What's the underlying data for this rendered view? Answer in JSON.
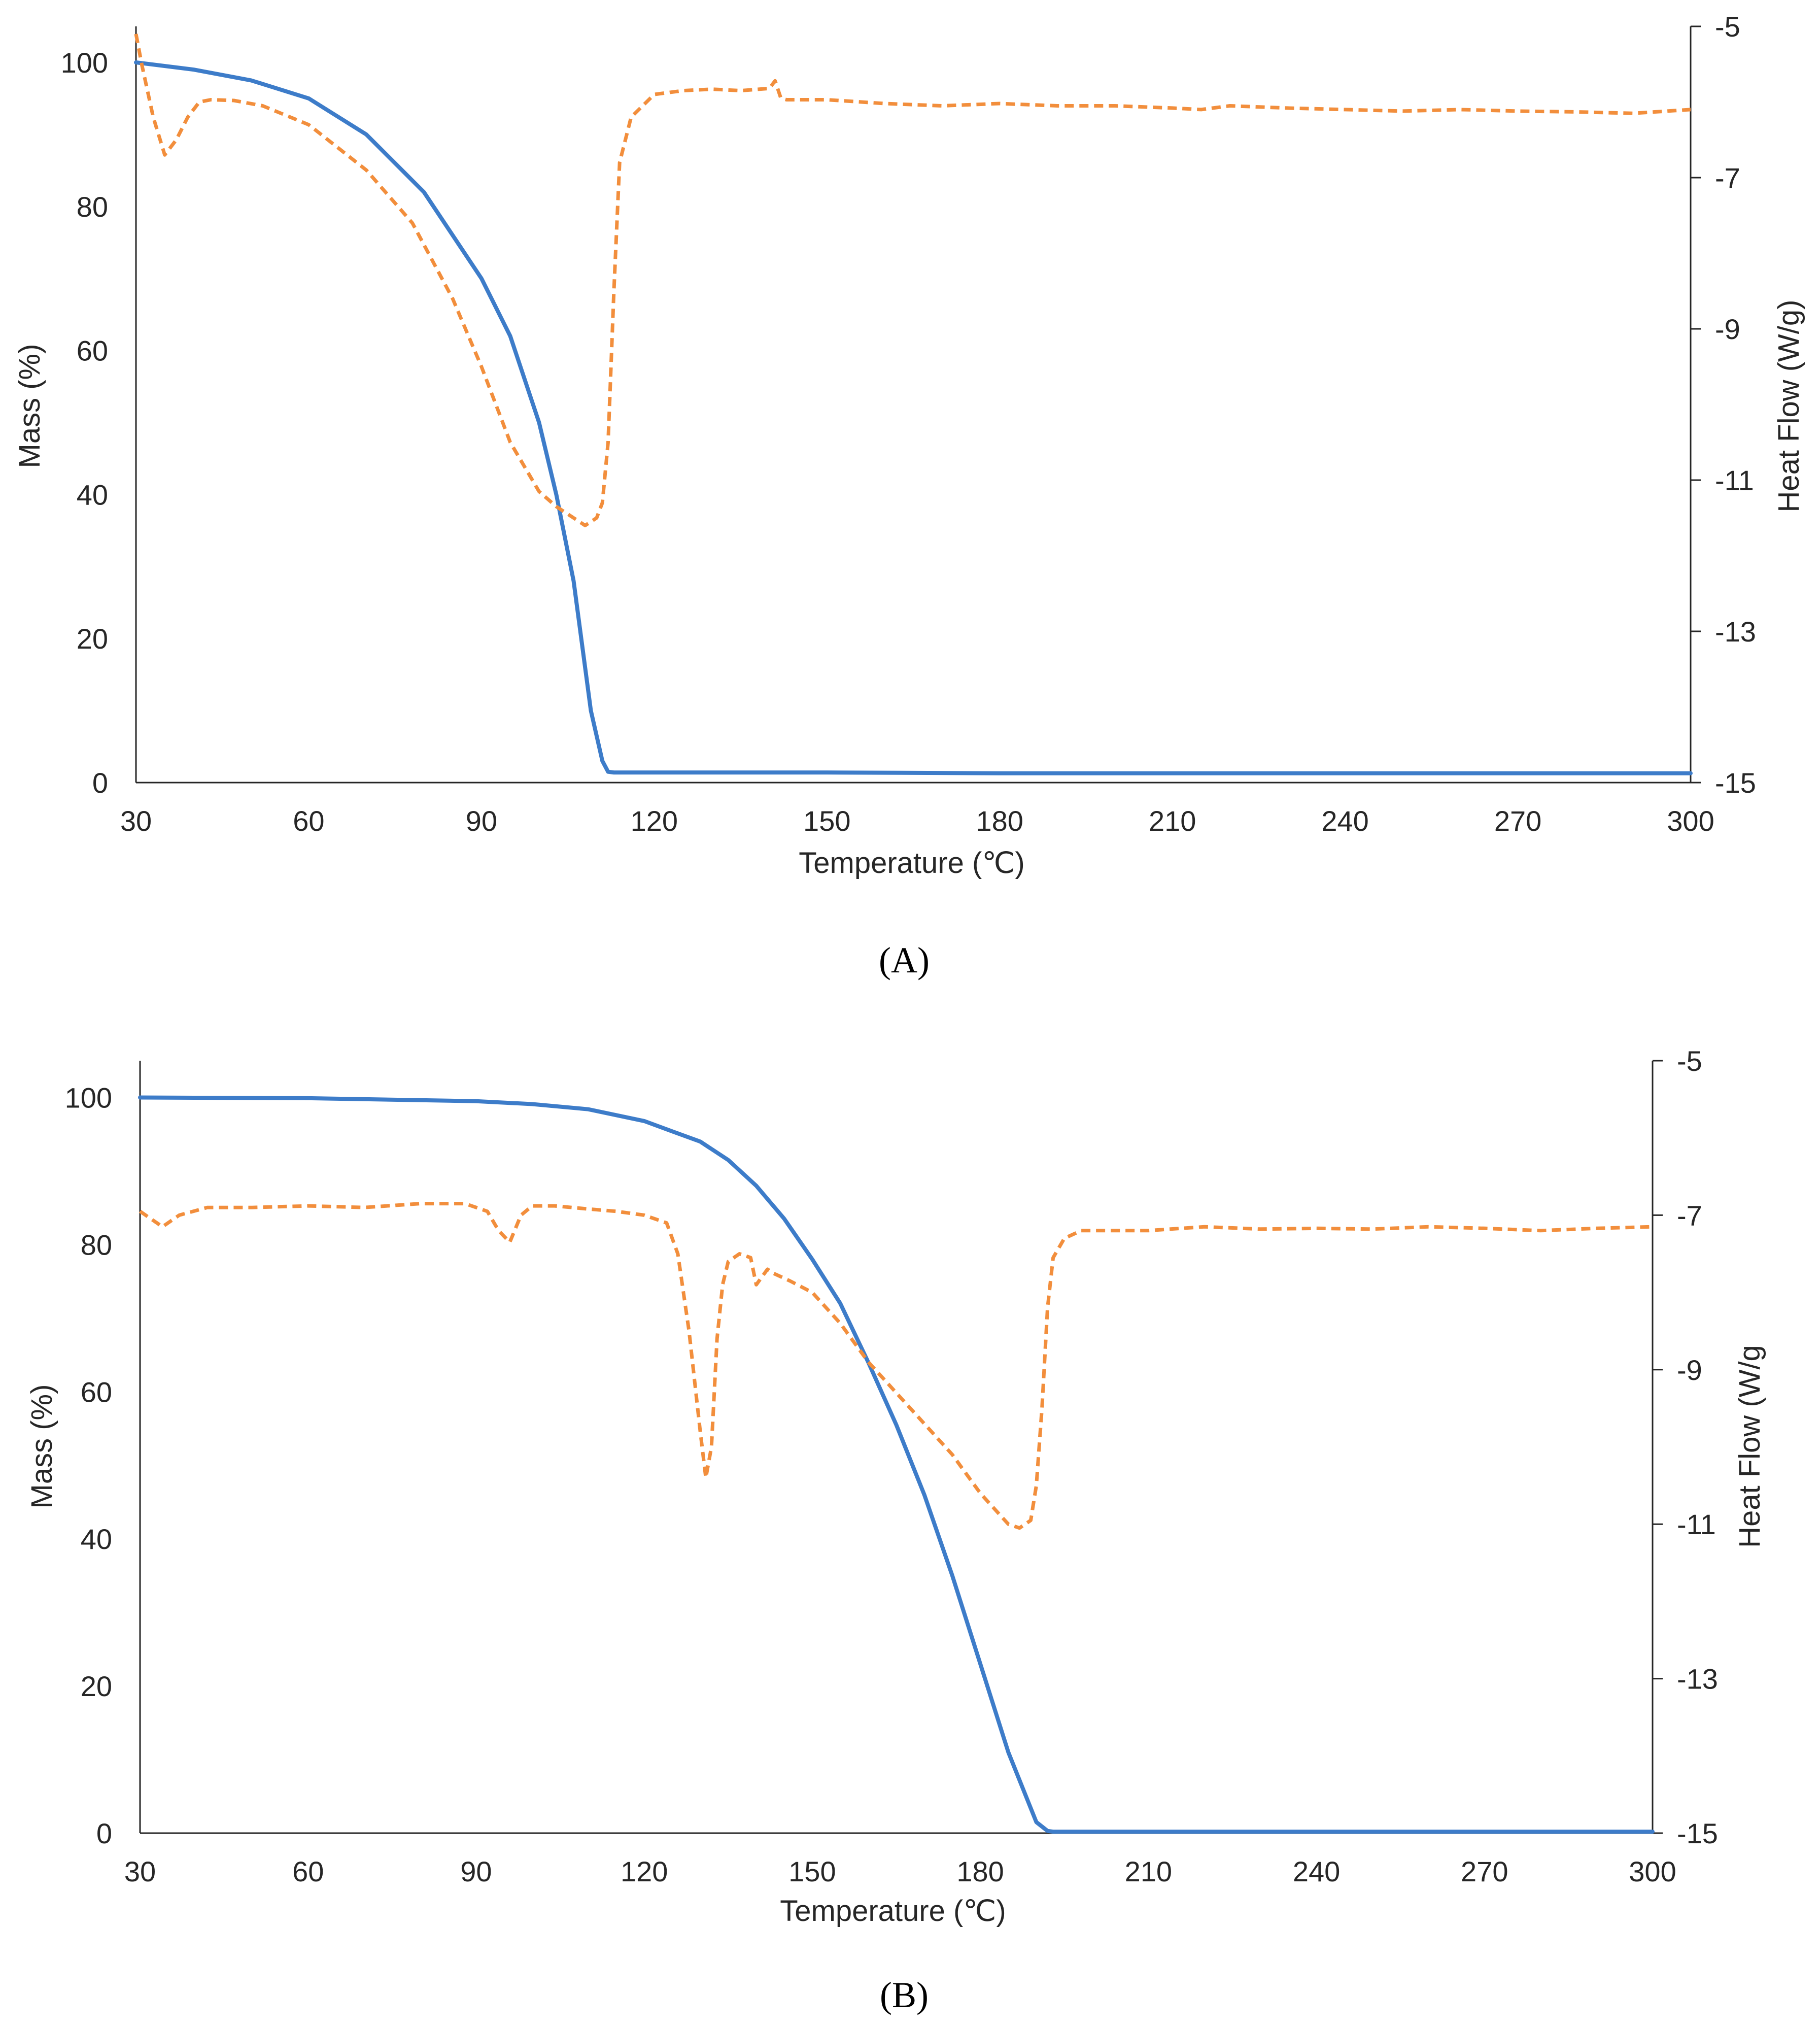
{
  "chart_data": [
    {
      "type": "line",
      "panel_label": "(A)",
      "xlabel": "Temperature (℃)",
      "ylabel": "Mass (%)",
      "y2label": "Heat Flow (W/g)",
      "xlim": [
        30,
        300
      ],
      "ylim": [
        0,
        105
      ],
      "y2lim": [
        -15,
        -5
      ],
      "xticks": [
        "30",
        "60",
        "90",
        "120",
        "150",
        "180",
        "210",
        "240",
        "270",
        "300"
      ],
      "yticks": [
        "0",
        "20",
        "40",
        "60",
        "80",
        "100"
      ],
      "y2ticks": [
        "-5",
        "-7",
        "-9",
        "-11",
        "-13",
        "-15"
      ],
      "series": [
        {
          "name": "Mass",
          "axis": "left",
          "style": "solid",
          "color": "#3d7cc9",
          "x": [
            30,
            40,
            50,
            60,
            70,
            80,
            90,
            95,
            100,
            103,
            106,
            109,
            111,
            112,
            113,
            120,
            150,
            180,
            210,
            240,
            270,
            300
          ],
          "y": [
            100,
            99,
            97.5,
            95,
            90,
            82,
            70,
            62,
            50,
            40,
            28,
            10,
            3,
            1.5,
            1.4,
            1.4,
            1.4,
            1.3,
            1.3,
            1.3,
            1.3,
            1.3
          ]
        },
        {
          "name": "Heat Flow",
          "axis": "right",
          "style": "dashed",
          "color": "#f28e3c",
          "x": [
            30,
            31,
            33,
            35,
            37,
            39,
            41,
            43,
            47,
            52,
            60,
            70,
            78,
            85,
            90,
            95,
            100,
            103,
            106,
            108,
            110,
            111,
            112,
            113,
            114,
            116,
            120,
            125,
            130,
            135,
            140,
            141,
            142,
            143,
            150,
            160,
            170,
            180,
            190,
            200,
            210,
            215,
            220,
            230,
            240,
            250,
            260,
            270,
            280,
            290,
            300
          ],
          "y": [
            -5.1,
            -5.5,
            -6.2,
            -6.7,
            -6.5,
            -6.2,
            -6.0,
            -5.97,
            -5.98,
            -6.05,
            -6.3,
            -6.9,
            -7.6,
            -8.6,
            -9.5,
            -10.5,
            -11.15,
            -11.35,
            -11.5,
            -11.6,
            -11.5,
            -11.3,
            -10.5,
            -8.5,
            -6.8,
            -6.2,
            -5.9,
            -5.85,
            -5.83,
            -5.85,
            -5.82,
            -5.72,
            -5.95,
            -5.97,
            -5.97,
            -6.02,
            -6.05,
            -6.02,
            -6.05,
            -6.05,
            -6.08,
            -6.1,
            -6.05,
            -6.08,
            -6.1,
            -6.12,
            -6.1,
            -6.12,
            -6.13,
            -6.15,
            -6.1
          ]
        }
      ]
    },
    {
      "type": "line",
      "panel_label": "(B)",
      "xlabel": "Temperature (℃)",
      "ylabel": "Mass (%)",
      "y2label": "Heat Flow (W/g",
      "xlim": [
        30,
        300
      ],
      "ylim": [
        0,
        105
      ],
      "y2lim": [
        -15,
        -5
      ],
      "xticks": [
        "30",
        "60",
        "90",
        "120",
        "150",
        "180",
        "210",
        "240",
        "270",
        "300"
      ],
      "yticks": [
        "0",
        "20",
        "40",
        "60",
        "80",
        "100"
      ],
      "y2ticks": [
        "-5",
        "-7",
        "-9",
        "-11",
        "-13",
        "-15"
      ],
      "series": [
        {
          "name": "Mass",
          "axis": "left",
          "style": "solid",
          "color": "#3d7cc9",
          "x": [
            30,
            60,
            90,
            100,
            110,
            120,
            125,
            130,
            135,
            140,
            145,
            150,
            155,
            160,
            165,
            170,
            175,
            180,
            185,
            190,
            192,
            193,
            200,
            240,
            270,
            300
          ],
          "y": [
            100,
            99.9,
            99.5,
            99.1,
            98.4,
            96.8,
            95.4,
            94,
            91.5,
            88,
            83.5,
            78,
            72,
            64,
            55.5,
            46,
            35,
            23,
            11,
            1.5,
            0.3,
            0.2,
            0.2,
            0.2,
            0.2,
            0.2
          ],
          "_note": ""
        },
        {
          "name": "Heat Flow",
          "axis": "right",
          "style": "dashed",
          "color": "#f28e3c",
          "x": [
            30,
            34,
            37,
            42,
            50,
            60,
            70,
            80,
            88,
            92,
            94,
            96,
            98,
            100,
            104,
            110,
            115,
            120,
            124,
            126,
            128,
            130,
            131,
            132,
            133,
            134,
            135,
            137,
            139,
            140,
            141,
            142,
            143,
            146,
            150,
            155,
            160,
            165,
            170,
            175,
            180,
            185,
            187,
            189,
            190,
            191,
            192,
            193,
            195,
            198,
            210,
            220,
            230,
            240,
            250,
            260,
            270,
            280,
            290,
            300
          ],
          "y": [
            -6.95,
            -7.15,
            -7.0,
            -6.9,
            -6.9,
            -6.88,
            -6.9,
            -6.85,
            -6.85,
            -6.95,
            -7.2,
            -7.35,
            -7.0,
            -6.88,
            -6.88,
            -6.92,
            -6.95,
            -7.0,
            -7.1,
            -7.5,
            -8.5,
            -9.8,
            -10.4,
            -10.0,
            -8.6,
            -7.9,
            -7.6,
            -7.5,
            -7.55,
            -7.9,
            -7.8,
            -7.7,
            -7.75,
            -7.85,
            -8.0,
            -8.4,
            -8.9,
            -9.3,
            -9.7,
            -10.1,
            -10.6,
            -11.0,
            -11.05,
            -10.95,
            -10.5,
            -9.5,
            -8.2,
            -7.55,
            -7.3,
            -7.2,
            -7.2,
            -7.15,
            -7.18,
            -7.17,
            -7.18,
            -7.15,
            -7.17,
            -7.2,
            -7.17,
            -7.15
          ]
        }
      ]
    }
  ]
}
